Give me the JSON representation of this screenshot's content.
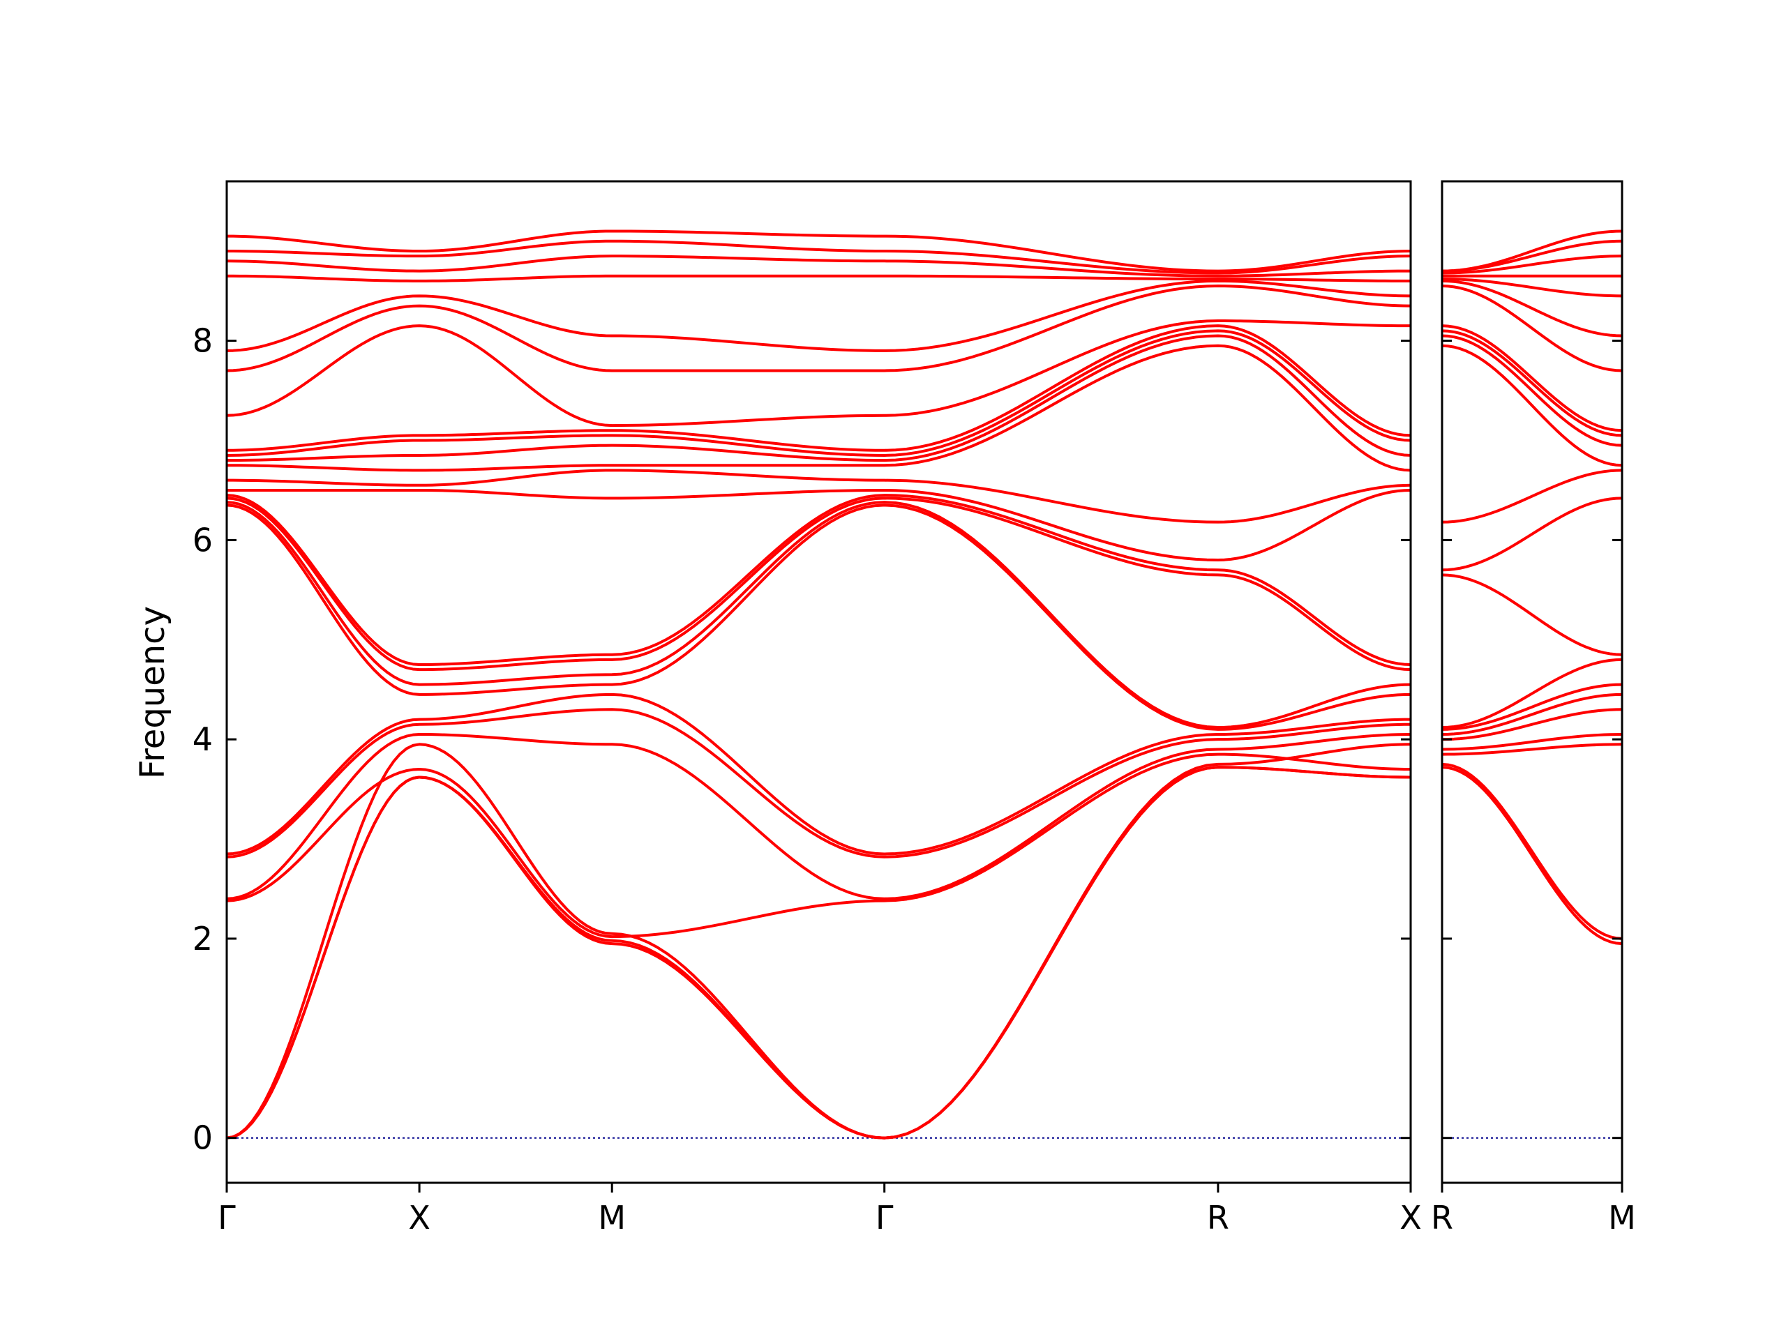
{
  "chart_data": {
    "type": "line",
    "title": "",
    "ylabel": "Frequency",
    "xlabel": "",
    "ylim": [
      -0.45,
      9.6
    ],
    "grid": false,
    "zero_line_color": "#00008b",
    "band_color": "#ff0000",
    "yticks": [
      0,
      2,
      4,
      6,
      8
    ],
    "panels": [
      {
        "id": "left",
        "labels": [
          "Γ",
          "X",
          "M",
          "Γ",
          "R",
          "X"
        ],
        "tick_positions": [
          0,
          0.5,
          1.0,
          1.7071,
          2.5731,
          3.0731
        ],
        "x_range": [
          0,
          3.0731
        ],
        "bands": [
          {
            "x": [
              0,
              0.5,
              1.0,
              1.7071,
              2.5731,
              3.0731
            ],
            "y": [
              0,
              3.62,
              1.95,
              0,
              3.72,
              3.62
            ]
          },
          {
            "x": [
              0,
              0.5,
              1.0,
              1.7071,
              2.5731,
              3.0731
            ],
            "y": [
              0,
              3.62,
              1.98,
              0,
              3.72,
              3.62
            ]
          },
          {
            "x": [
              0,
              0.5,
              1.0,
              1.7071,
              2.5731,
              3.0731
            ],
            "y": [
              0,
              3.95,
              2.05,
              0,
              3.75,
              3.95
            ]
          },
          {
            "x": [
              0,
              0.5,
              1.0,
              1.7071,
              2.5731,
              3.0731
            ],
            "y": [
              2.38,
              3.7,
              2.02,
              2.38,
              3.85,
              3.7
            ]
          },
          {
            "x": [
              0,
              0.5,
              1.0,
              1.7071,
              2.5731,
              3.0731
            ],
            "y": [
              2.4,
              4.05,
              3.95,
              2.4,
              3.9,
              4.05
            ]
          },
          {
            "x": [
              0,
              0.5,
              1.0,
              1.7071,
              2.5731,
              3.0731
            ],
            "y": [
              2.82,
              4.15,
              4.3,
              2.82,
              4.0,
              4.15
            ]
          },
          {
            "x": [
              0,
              0.5,
              1.0,
              1.7071,
              2.5731,
              3.0731
            ],
            "y": [
              2.85,
              4.2,
              4.45,
              2.85,
              4.05,
              4.2
            ]
          },
          {
            "x": [
              0,
              0.5,
              1.0,
              1.7071,
              2.5731,
              3.0731
            ],
            "y": [
              6.35,
              4.45,
              4.55,
              6.35,
              4.1,
              4.45
            ]
          },
          {
            "x": [
              0,
              0.5,
              1.0,
              1.7071,
              2.5731,
              3.0731
            ],
            "y": [
              6.38,
              4.55,
              4.65,
              6.38,
              4.12,
              4.55
            ]
          },
          {
            "x": [
              0,
              0.5,
              1.0,
              1.7071,
              2.5731,
              3.0731
            ],
            "y": [
              6.42,
              4.7,
              4.8,
              6.42,
              5.65,
              4.7
            ]
          },
          {
            "x": [
              0,
              0.5,
              1.0,
              1.7071,
              2.5731,
              3.0731
            ],
            "y": [
              6.45,
              4.75,
              4.85,
              6.45,
              5.7,
              4.75
            ]
          },
          {
            "x": [
              0,
              0.5,
              1.0,
              1.7071,
              2.5731,
              3.0731
            ],
            "y": [
              6.5,
              6.5,
              6.42,
              6.5,
              5.8,
              6.5
            ]
          },
          {
            "x": [
              0,
              0.5,
              1.0,
              1.7071,
              2.5731,
              3.0731
            ],
            "y": [
              6.6,
              6.55,
              6.7,
              6.6,
              6.18,
              6.55
            ]
          },
          {
            "x": [
              0,
              0.5,
              1.0,
              1.7071,
              2.5731,
              3.0731
            ],
            "y": [
              6.75,
              6.7,
              6.75,
              6.75,
              7.95,
              6.7
            ]
          },
          {
            "x": [
              0,
              0.5,
              1.0,
              1.7071,
              2.5731,
              3.0731
            ],
            "y": [
              6.8,
              6.85,
              6.95,
              6.8,
              8.05,
              6.85
            ]
          },
          {
            "x": [
              0,
              0.5,
              1.0,
              1.7071,
              2.5731,
              3.0731
            ],
            "y": [
              6.85,
              7.0,
              7.05,
              6.85,
              8.1,
              7.0
            ]
          },
          {
            "x": [
              0,
              0.5,
              1.0,
              1.7071,
              2.5731,
              3.0731
            ],
            "y": [
              6.9,
              7.05,
              7.1,
              6.9,
              8.15,
              7.05
            ]
          },
          {
            "x": [
              0,
              0.5,
              1.0,
              1.7071,
              2.5731,
              3.0731
            ],
            "y": [
              7.25,
              8.15,
              7.15,
              7.25,
              8.2,
              8.15
            ]
          },
          {
            "x": [
              0,
              0.5,
              1.0,
              1.7071,
              2.5731,
              3.0731
            ],
            "y": [
              7.7,
              8.35,
              7.7,
              7.7,
              8.55,
              8.35
            ]
          },
          {
            "x": [
              0,
              0.5,
              1.0,
              1.7071,
              2.5731,
              3.0731
            ],
            "y": [
              7.9,
              8.45,
              8.05,
              7.9,
              8.6,
              8.45
            ]
          },
          {
            "x": [
              0,
              0.5,
              1.0,
              1.7071,
              2.5731,
              3.0731
            ],
            "y": [
              8.65,
              8.6,
              8.65,
              8.65,
              8.62,
              8.6
            ]
          },
          {
            "x": [
              0,
              0.5,
              1.0,
              1.7071,
              2.5731,
              3.0731
            ],
            "y": [
              8.8,
              8.7,
              8.85,
              8.8,
              8.65,
              8.7
            ]
          },
          {
            "x": [
              0,
              0.5,
              1.0,
              1.7071,
              2.5731,
              3.0731
            ],
            "y": [
              8.9,
              8.85,
              9.0,
              8.9,
              8.68,
              8.85
            ]
          },
          {
            "x": [
              0,
              0.5,
              1.0,
              1.7071,
              2.5731,
              3.0731
            ],
            "y": [
              9.05,
              8.9,
              9.1,
              9.05,
              8.7,
              8.9
            ]
          }
        ]
      },
      {
        "id": "right",
        "labels": [
          "R",
          "M"
        ],
        "tick_positions": [
          0,
          0.7071
        ],
        "x_range": [
          0,
          0.7071
        ],
        "bands": [
          {
            "x": [
              0,
              0.7071
            ],
            "y": [
              3.72,
              1.95
            ]
          },
          {
            "x": [
              0,
              0.7071
            ],
            "y": [
              3.75,
              2.0
            ]
          },
          {
            "x": [
              0,
              0.7071
            ],
            "y": [
              3.85,
              3.95
            ]
          },
          {
            "x": [
              0,
              0.7071
            ],
            "y": [
              3.9,
              4.05
            ]
          },
          {
            "x": [
              0,
              0.7071
            ],
            "y": [
              4.0,
              4.3
            ]
          },
          {
            "x": [
              0,
              0.7071
            ],
            "y": [
              4.05,
              4.45
            ]
          },
          {
            "x": [
              0,
              0.7071
            ],
            "y": [
              4.1,
              4.55
            ]
          },
          {
            "x": [
              0,
              0.7071
            ],
            "y": [
              4.12,
              4.8
            ]
          },
          {
            "x": [
              0,
              0.7071
            ],
            "y": [
              5.65,
              4.85
            ]
          },
          {
            "x": [
              0,
              0.7071
            ],
            "y": [
              5.7,
              6.42
            ]
          },
          {
            "x": [
              0,
              0.7071
            ],
            "y": [
              6.18,
              6.7
            ]
          },
          {
            "x": [
              0,
              0.7071
            ],
            "y": [
              7.95,
              6.75
            ]
          },
          {
            "x": [
              0,
              0.7071
            ],
            "y": [
              8.05,
              6.95
            ]
          },
          {
            "x": [
              0,
              0.7071
            ],
            "y": [
              8.1,
              7.05
            ]
          },
          {
            "x": [
              0,
              0.7071
            ],
            "y": [
              8.15,
              7.1
            ]
          },
          {
            "x": [
              0,
              0.7071
            ],
            "y": [
              8.55,
              7.7
            ]
          },
          {
            "x": [
              0,
              0.7071
            ],
            "y": [
              8.6,
              8.05
            ]
          },
          {
            "x": [
              0,
              0.7071
            ],
            "y": [
              8.62,
              8.45
            ]
          },
          {
            "x": [
              0,
              0.7071
            ],
            "y": [
              8.65,
              8.65
            ]
          },
          {
            "x": [
              0,
              0.7071
            ],
            "y": [
              8.68,
              8.85
            ]
          },
          {
            "x": [
              0,
              0.7071
            ],
            "y": [
              8.7,
              9.0
            ]
          },
          {
            "x": [
              0,
              0.7071
            ],
            "y": [
              8.7,
              9.1
            ]
          }
        ]
      }
    ]
  }
}
